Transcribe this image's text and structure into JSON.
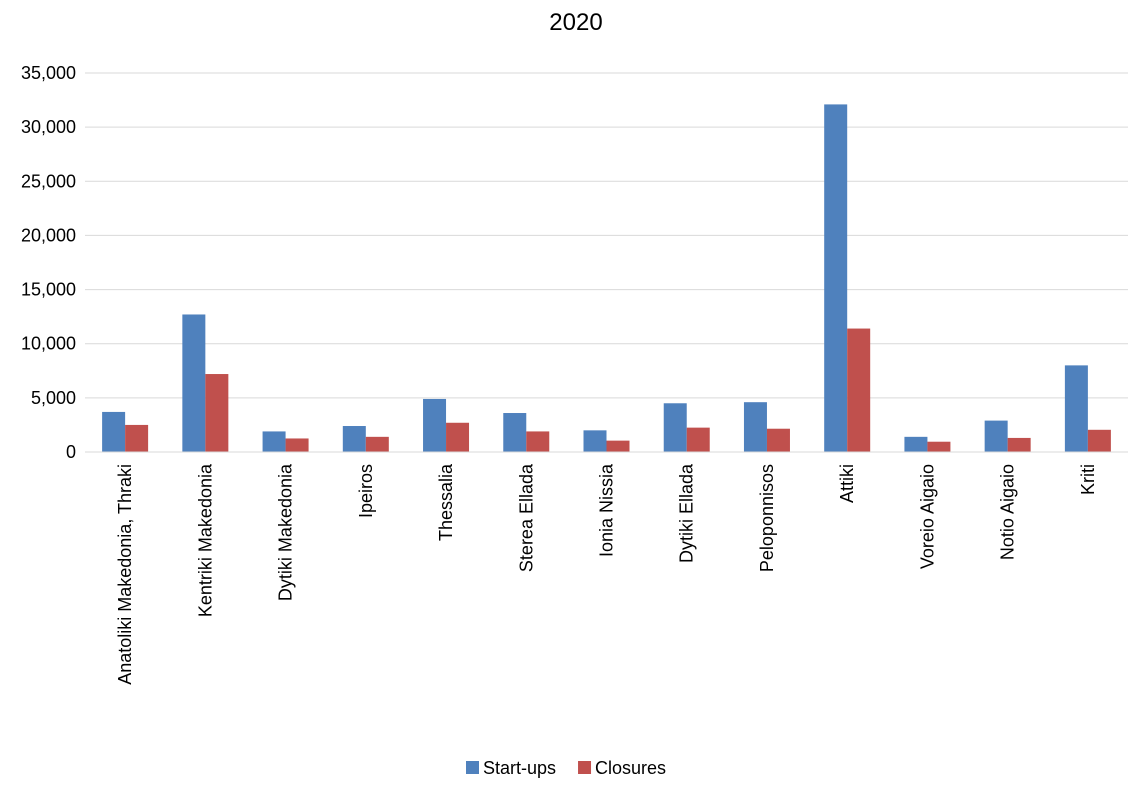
{
  "chart_data": {
    "type": "bar",
    "title": "2020",
    "xlabel": "",
    "ylabel": "",
    "ylim": [
      0,
      35000
    ],
    "yticks": [
      0,
      5000,
      10000,
      15000,
      20000,
      25000,
      30000,
      35000
    ],
    "ytick_labels": [
      "0",
      "5,000",
      "10,000",
      "15,000",
      "20,000",
      "25,000",
      "30,000",
      "35,000"
    ],
    "grid": true,
    "legend_position": "bottom",
    "categories": [
      "Anatoliki Makedonia, Thraki",
      "Kentriki Makedonia",
      "Dytiki Makedonia",
      "Ipeiros",
      "Thessalia",
      "Sterea Ellada",
      "Ionia Nissia",
      "Dytiki Ellada",
      "Peloponnisos",
      "Attiki",
      "Voreio Aigaio",
      "Notio Aigaio",
      "Kriti"
    ],
    "series": [
      {
        "name": "Start-ups",
        "color": "#4f81bd",
        "values": [
          3700,
          12700,
          1900,
          2400,
          4900,
          3600,
          2000,
          4500,
          4600,
          32100,
          1400,
          2900,
          8000
        ]
      },
      {
        "name": "Closures",
        "color": "#c0504d",
        "values": [
          2500,
          7200,
          1250,
          1400,
          2700,
          1900,
          1050,
          2250,
          2150,
          11400,
          950,
          1300,
          2050
        ]
      }
    ]
  }
}
